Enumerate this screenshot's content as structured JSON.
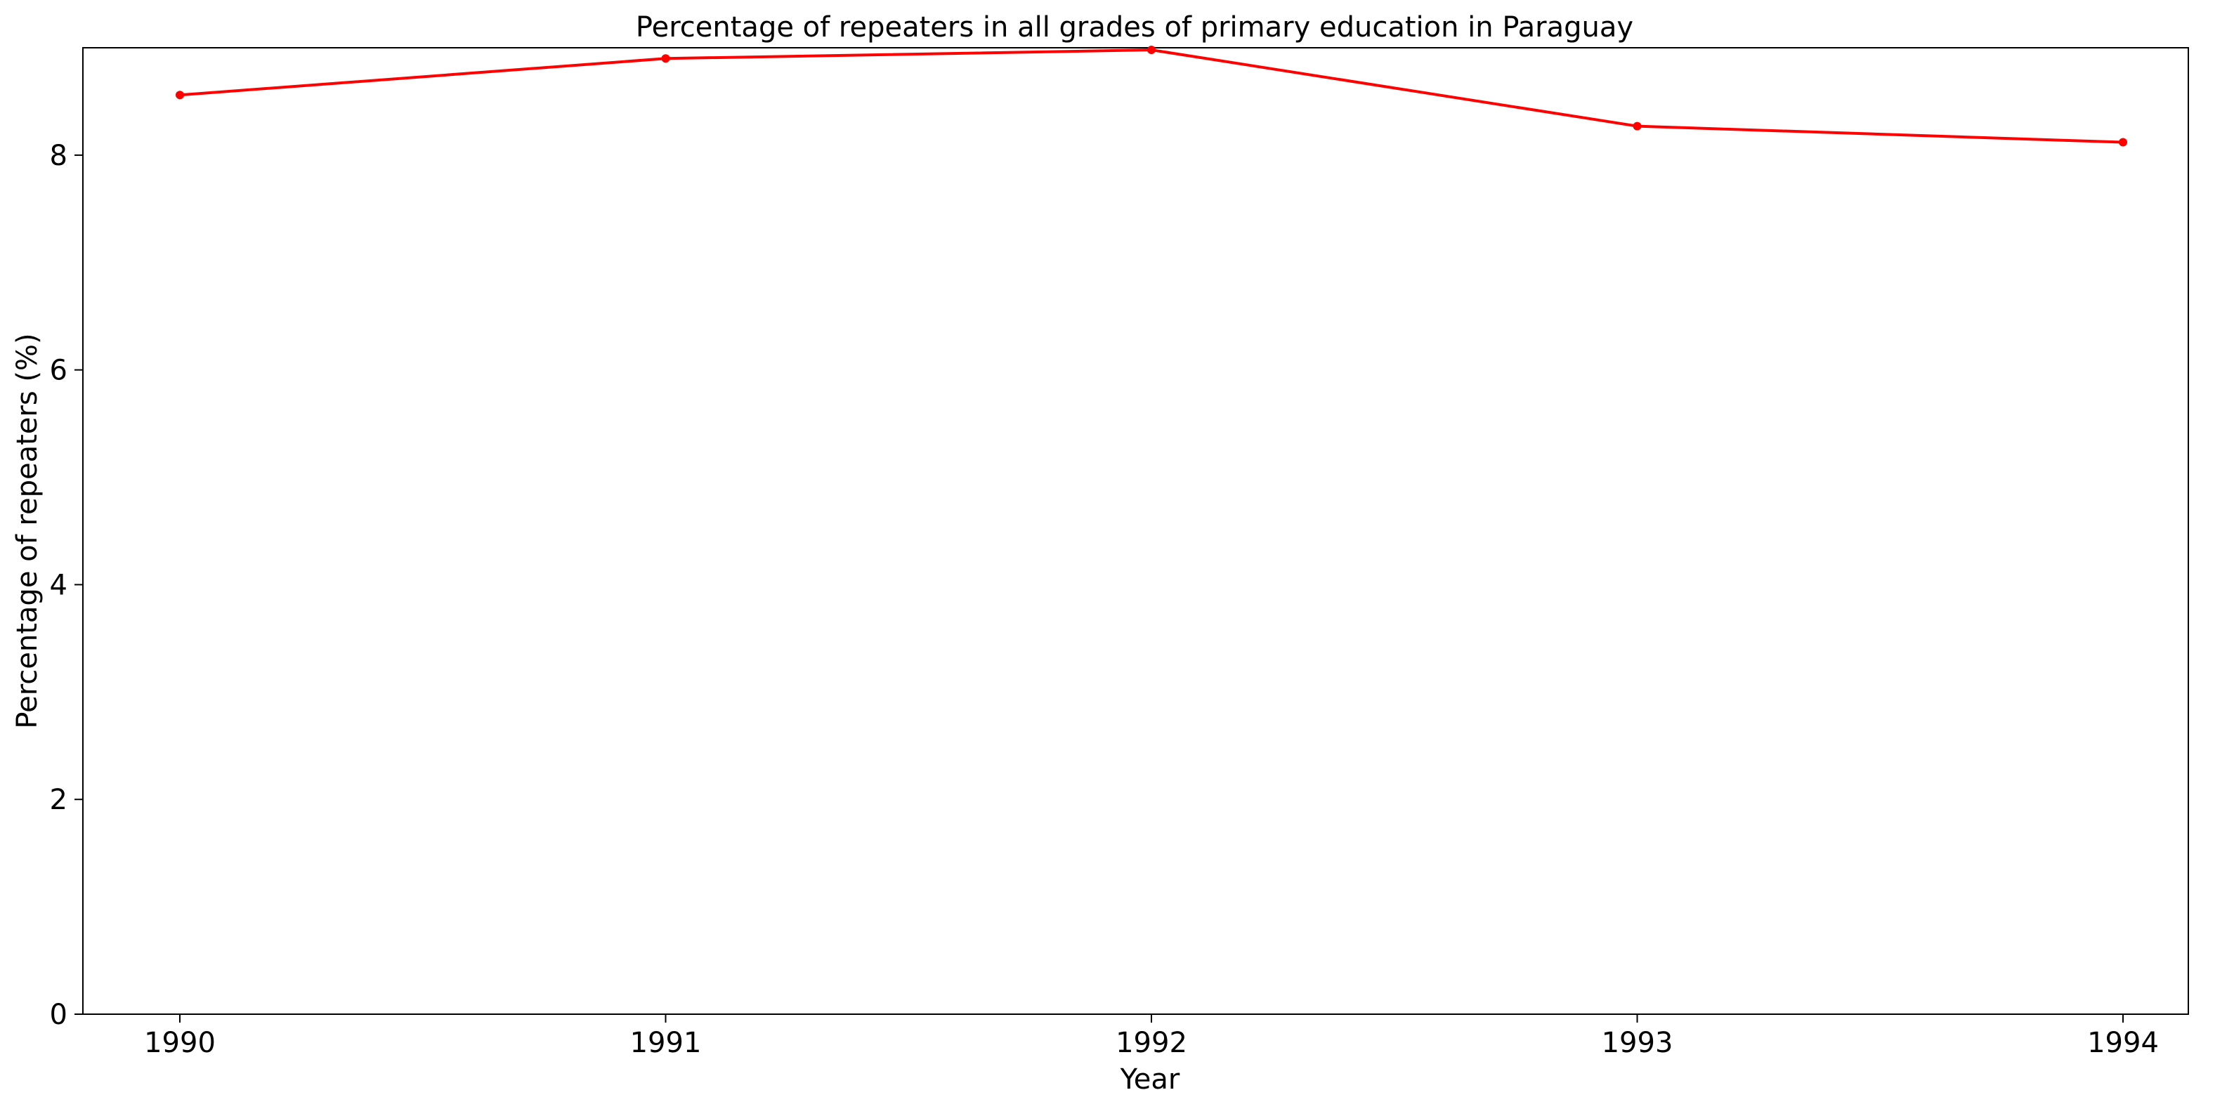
{
  "chart_data": {
    "type": "line",
    "title": "Percentage of repeaters in all grades of primary education in Paraguay",
    "xlabel": "Year",
    "ylabel": "Percentage of repeaters (%)",
    "x": [
      1990,
      1991,
      1992,
      1993,
      1994
    ],
    "x_tick_labels": [
      "1990",
      "1991",
      "1992",
      "1993",
      "1994"
    ],
    "y_ticks": [
      0,
      2,
      4,
      6,
      8
    ],
    "y_tick_labels": [
      "0",
      "2",
      "4",
      "6",
      "8"
    ],
    "ylim": [
      0,
      9
    ],
    "grid": false,
    "series": [
      {
        "values": [
          8.56,
          8.9,
          8.98,
          8.27,
          8.12
        ],
        "color": "#ff0000",
        "marker": "circle"
      }
    ]
  }
}
